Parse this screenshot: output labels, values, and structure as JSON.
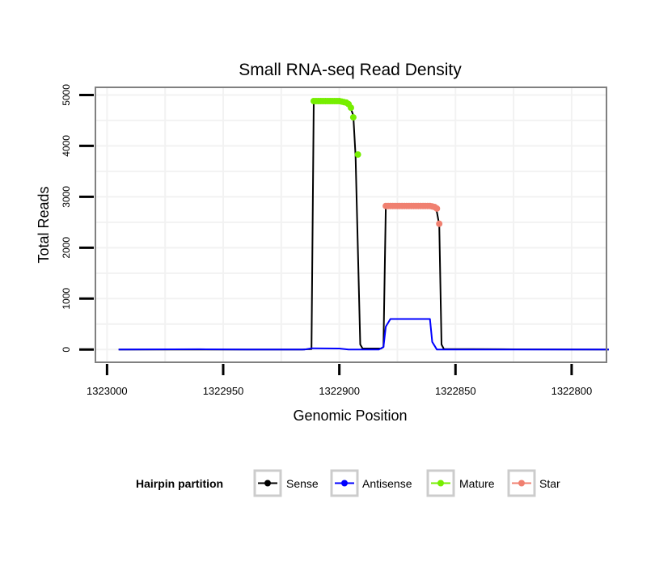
{
  "chart_data": {
    "type": "line",
    "title": "Small RNA-seq Read Density",
    "xlabel": "Genomic Position",
    "ylabel": "Total Reads",
    "xlim": [
      1323005,
      1322785
    ],
    "ylim": [
      -250,
      5150
    ],
    "x_reversed": true,
    "xticks": [
      1323000,
      1322950,
      1322900,
      1322850,
      1322800
    ],
    "xtick_labels": [
      "1323000",
      "1322950",
      "1322900",
      "1322850",
      "1322800"
    ],
    "yticks": [
      0,
      1000,
      2000,
      3000,
      4000,
      5000
    ],
    "ytick_labels": [
      "0",
      "1000",
      "2000",
      "3000",
      "4000",
      "5000"
    ],
    "grid": true,
    "legend": {
      "title": "Hairpin partition",
      "position": "bottom",
      "entries": [
        "Sense",
        "Antisense",
        "Mature",
        "Star"
      ]
    },
    "series": [
      {
        "name": "Sense",
        "color": "#000000",
        "marker": "none",
        "points": [
          [
            1322995,
            0
          ],
          [
            1322950,
            0
          ],
          [
            1322916,
            0
          ],
          [
            1322912,
            10
          ],
          [
            1322911,
            4880
          ],
          [
            1322896,
            4850
          ],
          [
            1322894,
            4600
          ],
          [
            1322893,
            3800
          ],
          [
            1322891,
            100
          ],
          [
            1322890,
            20
          ],
          [
            1322882,
            20
          ],
          [
            1322881,
            50
          ],
          [
            1322880,
            2800
          ],
          [
            1322859,
            2800
          ],
          [
            1322858,
            2700
          ],
          [
            1322857,
            2450
          ],
          [
            1322856,
            100
          ],
          [
            1322855,
            10
          ],
          [
            1322830,
            5
          ],
          [
            1322784,
            0
          ]
        ]
      },
      {
        "name": "Antisense",
        "color": "#0000ff",
        "marker": "none",
        "points": [
          [
            1322995,
            0
          ],
          [
            1322960,
            5
          ],
          [
            1322940,
            0
          ],
          [
            1322915,
            0
          ],
          [
            1322912,
            25
          ],
          [
            1322900,
            20
          ],
          [
            1322896,
            0
          ],
          [
            1322883,
            0
          ],
          [
            1322881,
            50
          ],
          [
            1322880,
            450
          ],
          [
            1322878,
            600
          ],
          [
            1322861,
            600
          ],
          [
            1322860,
            150
          ],
          [
            1322858,
            0
          ],
          [
            1322784,
            0
          ]
        ]
      },
      {
        "name": "Mature",
        "color": "#76ee00",
        "marker": "circle",
        "points": [
          [
            1322911,
            4880
          ],
          [
            1322910,
            4880
          ],
          [
            1322909,
            4880
          ],
          [
            1322908,
            4880
          ],
          [
            1322907,
            4880
          ],
          [
            1322906,
            4880
          ],
          [
            1322905,
            4880
          ],
          [
            1322904,
            4880
          ],
          [
            1322903,
            4880
          ],
          [
            1322902,
            4880
          ],
          [
            1322901,
            4880
          ],
          [
            1322900,
            4880
          ],
          [
            1322899,
            4870
          ],
          [
            1322898,
            4860
          ],
          [
            1322897,
            4850
          ],
          [
            1322896,
            4820
          ],
          [
            1322895,
            4750
          ],
          [
            1322894,
            4560
          ],
          [
            1322892,
            3830
          ]
        ]
      },
      {
        "name": "Star",
        "color": "#f08070",
        "marker": "circle",
        "points": [
          [
            1322880,
            2820
          ],
          [
            1322879,
            2820
          ],
          [
            1322878,
            2820
          ],
          [
            1322877,
            2820
          ],
          [
            1322876,
            2820
          ],
          [
            1322875,
            2820
          ],
          [
            1322874,
            2820
          ],
          [
            1322873,
            2820
          ],
          [
            1322872,
            2820
          ],
          [
            1322871,
            2820
          ],
          [
            1322870,
            2820
          ],
          [
            1322869,
            2820
          ],
          [
            1322868,
            2820
          ],
          [
            1322867,
            2820
          ],
          [
            1322866,
            2820
          ],
          [
            1322865,
            2820
          ],
          [
            1322864,
            2820
          ],
          [
            1322863,
            2820
          ],
          [
            1322862,
            2820
          ],
          [
            1322861,
            2820
          ],
          [
            1322860,
            2810
          ],
          [
            1322859,
            2800
          ],
          [
            1322858,
            2770
          ],
          [
            1322857,
            2470
          ]
        ]
      }
    ]
  }
}
